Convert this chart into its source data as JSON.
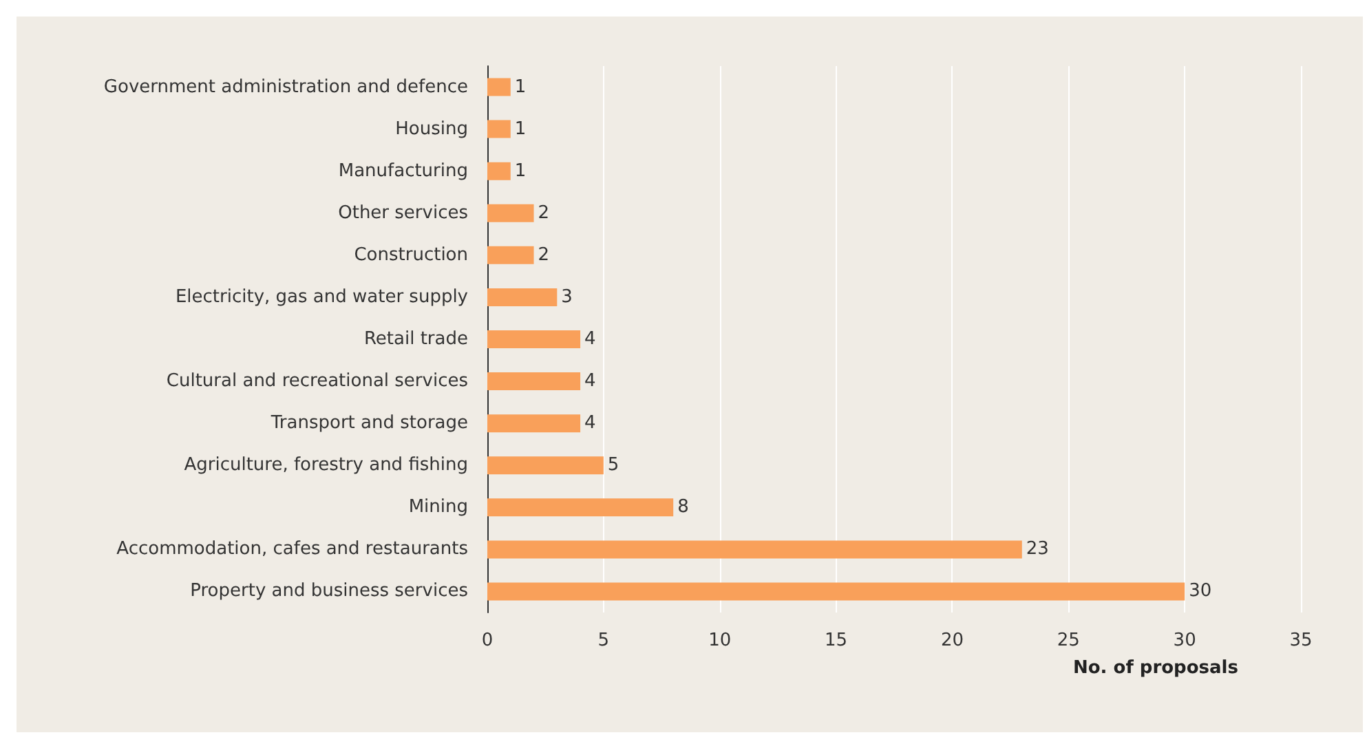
{
  "chart_data": {
    "type": "bar",
    "orientation": "horizontal",
    "xlabel": "No. of proposals",
    "categories": [
      "Government administration and defence",
      "Housing",
      "Manufacturing",
      "Other services",
      "Construction",
      "Electricity, gas and water supply",
      "Retail trade",
      "Cultural and recreational services",
      "Transport and storage",
      "Agriculture, forestry and fishing",
      "Mining",
      "Accommodation, cafes and restaurants",
      "Property and business services"
    ],
    "values": [
      1,
      1,
      1,
      2,
      2,
      3,
      4,
      4,
      4,
      5,
      8,
      23,
      30
    ],
    "color": "#f9a05a",
    "xlim": [
      0,
      35
    ],
    "xticks": [
      0,
      5,
      10,
      15,
      20,
      25,
      30,
      35
    ],
    "grid": "x",
    "data_labels": true
  }
}
